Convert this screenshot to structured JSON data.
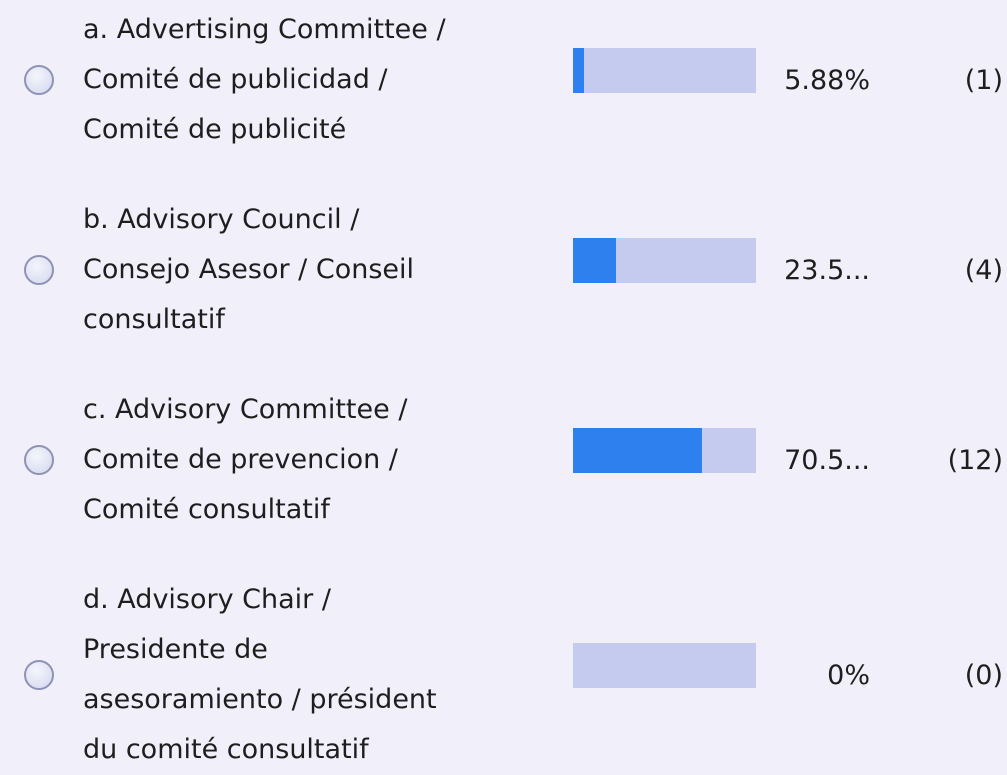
{
  "options": [
    {
      "lines": [
        "a. Advertising Committee /",
        "Comité de publicidad /",
        "Comité de publicité"
      ],
      "percent": 5.88,
      "percent_label": "5.88%",
      "count": 1,
      "count_label": "(1)"
    },
    {
      "lines": [
        "b. Advisory Council /",
        "Consejo Asesor / Conseil",
        "consultatif"
      ],
      "percent": 23.53,
      "percent_label": "23.5...",
      "count": 4,
      "count_label": "(4)"
    },
    {
      "lines": [
        "c. Advisory Committee /",
        "Comite de prevencion /",
        "Comité consultatif"
      ],
      "percent": 70.59,
      "percent_label": "70.5...",
      "count": 12,
      "count_label": "(12)"
    },
    {
      "lines": [
        "d. Advisory Chair /",
        "Presidente de",
        "asesoramiento / président",
        "du comité consultatif"
      ],
      "percent": 0,
      "percent_label": "0%",
      "count": 0,
      "count_label": "(0)"
    }
  ]
}
